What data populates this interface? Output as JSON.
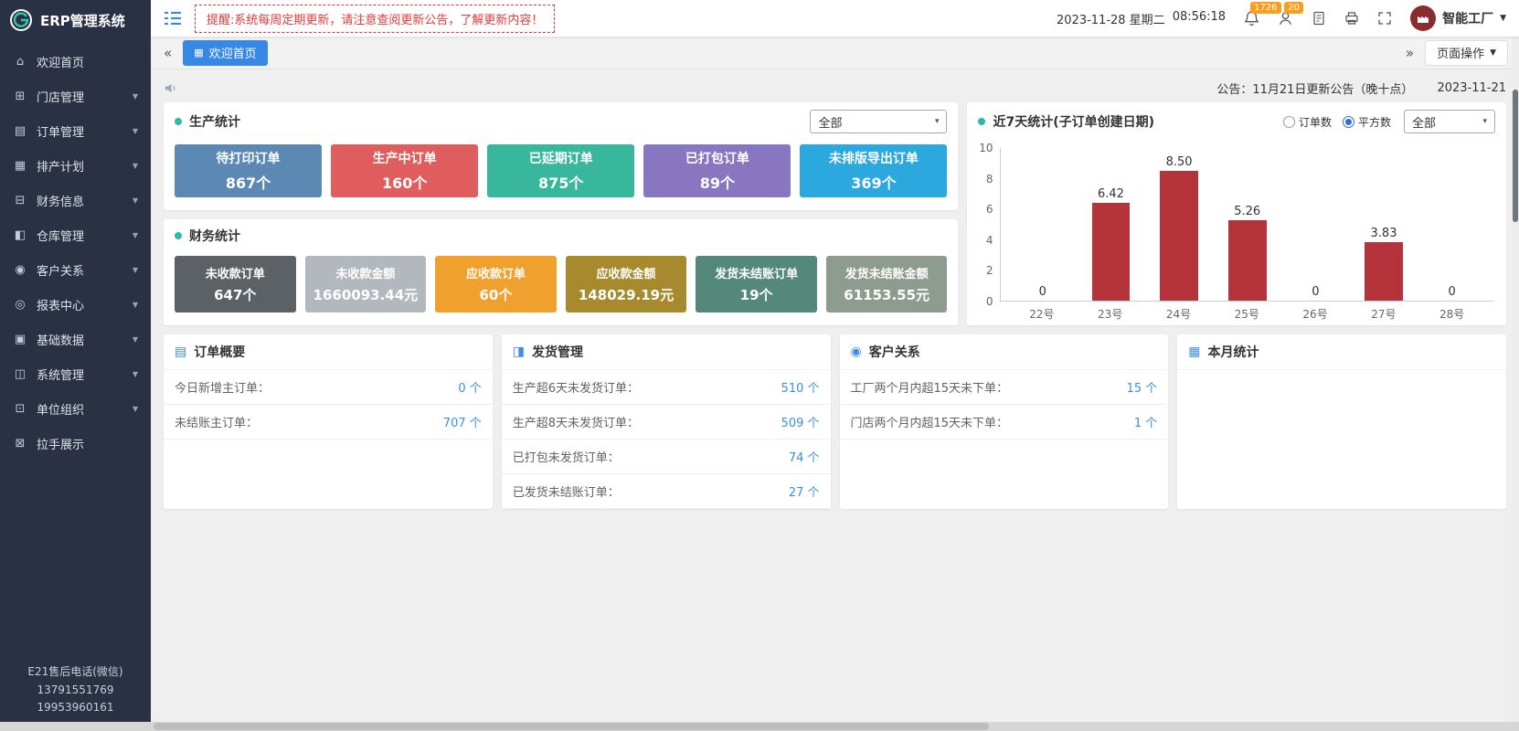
{
  "icons": {
    "caret": "▾",
    "caret_small": "▼",
    "tab_grid": "▦"
  },
  "colors": {
    "accent": "#3a8ee6",
    "sidebar_bg": "#2b3144",
    "active_tab": "#3788e5",
    "badge": "#fa9e1b",
    "alert_red": "#e03a3a",
    "panel_dot": "#2bb9a9",
    "bar": "#b5343c"
  },
  "sidebar": {
    "logo_text": "ERP管理系统",
    "items": [
      {
        "label": "欢迎首页",
        "glyph": "⌂",
        "expandable": false
      },
      {
        "label": "门店管理",
        "glyph": "⊞",
        "expandable": true
      },
      {
        "label": "订单管理",
        "glyph": "▤",
        "expandable": true
      },
      {
        "label": "排产计划",
        "glyph": "▦",
        "expandable": true
      },
      {
        "label": "财务信息",
        "glyph": "⊟",
        "expandable": true
      },
      {
        "label": "仓库管理",
        "glyph": "◧",
        "expandable": true
      },
      {
        "label": "客户关系",
        "glyph": "◉",
        "expandable": true
      },
      {
        "label": "报表中心",
        "glyph": "◎",
        "expandable": true
      },
      {
        "label": "基础数据",
        "glyph": "▣",
        "expandable": true
      },
      {
        "label": "系统管理",
        "glyph": "◫",
        "expandable": true
      },
      {
        "label": "单位组织",
        "glyph": "⊡",
        "expandable": true
      },
      {
        "label": "拉手展示",
        "glyph": "⊠",
        "expandable": false
      }
    ],
    "footer_lines": [
      "E21售后电话(微信)",
      "13791551769",
      "19953960161"
    ]
  },
  "header": {
    "alert": "提醒:系统每周定期更新，请注意查阅更新公告，了解更新内容！",
    "date": "2023-11-28 星期二",
    "time": "08:56:18",
    "bell_badge": "1726",
    "message_badge": "20",
    "user_name": "智能工厂"
  },
  "tabbar": {
    "collapse_left": "«",
    "collapse_right": "»",
    "active_tab": "欢迎首页",
    "page_ops_label": "页面操作"
  },
  "announcement": {
    "text": "公告：11月21日更新公告（晚十点）",
    "date": "2023-11-21"
  },
  "production": {
    "title": "生产统计",
    "filter_value": "全部",
    "cards": [
      {
        "label": "待打印订单",
        "value": "867个",
        "color": "#5b89b4"
      },
      {
        "label": "生产中订单",
        "value": "160个",
        "color": "#e05d5d"
      },
      {
        "label": "已延期订单",
        "value": "875个",
        "color": "#38b79c"
      },
      {
        "label": "已打包订单",
        "value": "89个",
        "color": "#8976c1"
      },
      {
        "label": "未排版导出订单",
        "value": "369个",
        "color": "#2ba8de"
      }
    ]
  },
  "finance": {
    "title": "财务统计",
    "cards": [
      {
        "label": "未收款订单",
        "value": "647个",
        "color": "#5c6166"
      },
      {
        "label": "未收款金额",
        "value": "1660093.44元",
        "color": "#b2b8bd"
      },
      {
        "label": "应收款订单",
        "value": "60个",
        "color": "#f0a12d"
      },
      {
        "label": "应收款金额",
        "value": "148029.19元",
        "color": "#a7892e"
      },
      {
        "label": "发货未结账订单",
        "value": "19个",
        "color": "#53887b"
      },
      {
        "label": "发货未结账金额",
        "value": "61153.55元",
        "color": "#8d9c8f"
      }
    ]
  },
  "chart_panel": {
    "title": "近7天统计(子订单创建日期)",
    "radios": [
      {
        "label": "订单数",
        "checked": false
      },
      {
        "label": "平方数",
        "checked": true
      }
    ],
    "filter_value": "全部"
  },
  "chart_data": {
    "type": "bar",
    "title": "近7天统计(子订单创建日期)",
    "categories": [
      "22号",
      "23号",
      "24号",
      "25号",
      "26号",
      "27号",
      "28号"
    ],
    "values": [
      0,
      6.42,
      8.5,
      5.26,
      0,
      3.83,
      0
    ],
    "value_labels": [
      "0",
      "6.42",
      "8.50",
      "5.26",
      "0",
      "3.83",
      "0"
    ],
    "bar_color": "#b5343c",
    "xlabel": "",
    "ylabel": "",
    "ylim": [
      0,
      10
    ],
    "yticks": [
      0,
      2,
      4,
      6,
      8,
      10
    ],
    "grid": false,
    "legend": "none"
  },
  "summary_panels": [
    {
      "title": "订单概要",
      "icon_glyph": "▤",
      "rows": [
        {
          "label": "今日新增主订单：",
          "value": "0 个"
        },
        {
          "label": "未结账主订单：",
          "value": "707 个"
        }
      ]
    },
    {
      "title": "发货管理",
      "icon_glyph": "◨",
      "rows": [
        {
          "label": "生产超6天未发货订单：",
          "value": "510 个"
        },
        {
          "label": "生产超8天未发货订单：",
          "value": "509 个"
        },
        {
          "label": "已打包未发货订单：",
          "value": "74 个"
        },
        {
          "label": "已发货未结账订单：",
          "value": "27 个"
        }
      ]
    },
    {
      "title": "客户关系",
      "icon_glyph": "◉",
      "rows": [
        {
          "label": "工厂两个月内超15天未下单：",
          "value": "15 个"
        },
        {
          "label": "门店两个月内超15天未下单：",
          "value": "1 个"
        }
      ]
    },
    {
      "title": "本月统计",
      "icon_glyph": "▦",
      "rows": []
    }
  ]
}
